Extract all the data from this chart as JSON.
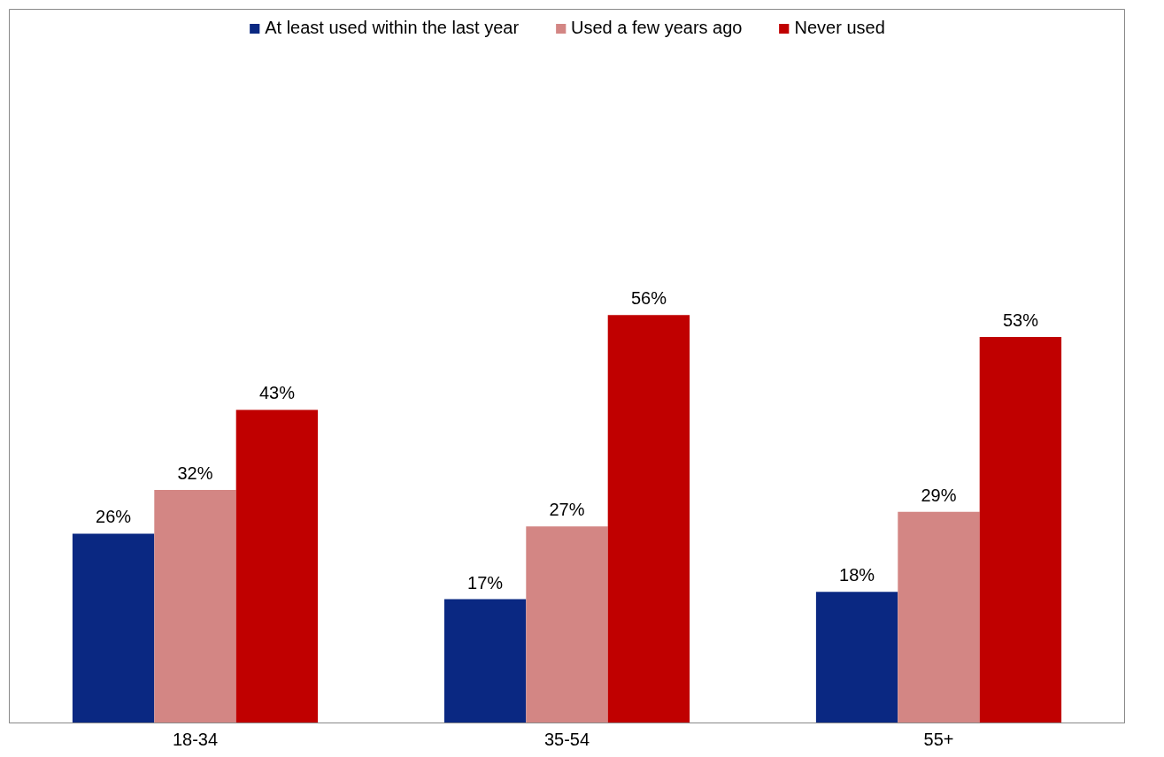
{
  "chart_data": {
    "type": "bar",
    "categories": [
      "18-34",
      "35-54",
      "55+"
    ],
    "series": [
      {
        "name": "At least used within the last year",
        "color": "#0a2882",
        "values": [
          26,
          17,
          18
        ],
        "value_labels": [
          "26%",
          "17%",
          "18%"
        ]
      },
      {
        "name": "Used a few years ago",
        "color": "#d38684",
        "values": [
          32,
          27,
          29
        ],
        "value_labels": [
          "32%",
          "27%",
          "29%"
        ]
      },
      {
        "name": "Never used",
        "color": "#c00000",
        "values": [
          43,
          56,
          53
        ],
        "value_labels": [
          "43%",
          "56%",
          "53%"
        ]
      }
    ],
    "tick_labels": "x",
    "grid": false,
    "legend": "top"
  }
}
